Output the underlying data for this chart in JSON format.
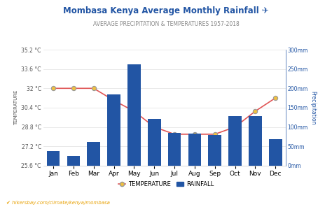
{
  "title": "Mombasa Kenya Average Monthly Rainfall ✈",
  "subtitle": "AVERAGE PRECIPITATION & TEMPERATURES 1957-2018",
  "months": [
    "Jan",
    "Feb",
    "Mar",
    "Apr",
    "May",
    "Jun",
    "Jul",
    "Aug",
    "Sep",
    "Oct",
    "Nov",
    "Dec"
  ],
  "rainfall_mm": [
    38,
    25,
    62,
    185,
    262,
    120,
    85,
    82,
    80,
    128,
    128,
    68
  ],
  "temperature_c": [
    32.0,
    32.0,
    32.0,
    31.0,
    30.1,
    28.8,
    28.2,
    28.2,
    28.2,
    28.8,
    30.1,
    31.2
  ],
  "temp_ylim": [
    25.6,
    35.2
  ],
  "temp_yticks": [
    25.6,
    27.2,
    28.8,
    30.4,
    32.0,
    33.6,
    35.2
  ],
  "rain_ylim": [
    0,
    300
  ],
  "rain_yticks": [
    0,
    50,
    100,
    150,
    200,
    250,
    300
  ],
  "rain_yticklabels": [
    "0mm",
    "50mm",
    "100mm",
    "150mm",
    "200mm",
    "250mm",
    "300mm"
  ],
  "temp_yticklabels": [
    "25.6 °C",
    "27.2 °C",
    "28.8 °C",
    "30.4 °C",
    "32 °C",
    "33.6 °C",
    "35.2 °C"
  ],
  "bar_color": "#2255a4",
  "line_color": "#e05555",
  "marker_face": "#f0c040",
  "marker_edge": "#999999",
  "temp_axis_color": "#555555",
  "rain_axis_color": "#2255a4",
  "background_color": "#ffffff",
  "grid_color": "#e0e0e0",
  "footer": "hikersbay.com/climate/kenya/mombasa",
  "title_color": "#2255a4",
  "subtitle_color": "#888888",
  "legend_temp_label": "TEMPERATURE",
  "legend_rain_label": "RAINFALL"
}
